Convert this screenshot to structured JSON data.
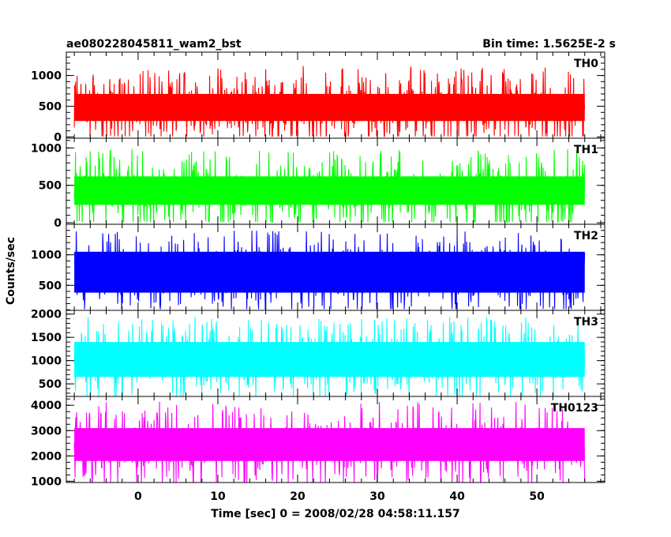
{
  "header": {
    "title": "ae080228045811_wam2_bst",
    "bin_time": "Bin time: 1.5625E-2 s"
  },
  "chart_data": {
    "type": "line",
    "title": "ae080228045811_wam2_bst",
    "subtitle": "Bin time: 1.5625E-2 s",
    "xlabel": "Time [sec] 0 = 2008/02/28 04:58:11.157",
    "ylabel": "Counts/sec",
    "xlim": [
      -9,
      58.5
    ],
    "x_range_data": [
      -8,
      56
    ],
    "x_ticks": [
      0,
      10,
      20,
      30,
      40,
      50
    ],
    "x_tick_labels": [
      "0",
      "10",
      "20",
      "30",
      "40",
      "50"
    ],
    "grid": false,
    "panels": [
      {
        "name": "TH0",
        "color": "#ff0000",
        "ylim": [
          -20,
          1380
        ],
        "yticks": [
          0,
          500,
          1000
        ],
        "ytick_labels": [
          "0",
          "500",
          "1000"
        ],
        "min": 10,
        "max": 1370,
        "band_low": 260,
        "band_high": 700
      },
      {
        "name": "TH1",
        "color": "#00ff00",
        "ylim": [
          -20,
          1130
        ],
        "yticks": [
          0,
          500,
          1000
        ],
        "ytick_labels": [
          "0",
          "500",
          "1000"
        ],
        "min": 10,
        "max": 1130,
        "band_low": 240,
        "band_high": 620
      },
      {
        "name": "TH2",
        "color": "#0000ff",
        "ylim": [
          90,
          1500
        ],
        "yticks": [
          500,
          1000
        ],
        "ytick_labels": [
          "500",
          "1000"
        ],
        "min": 110,
        "max": 1500,
        "band_low": 380,
        "band_high": 1050
      },
      {
        "name": "TH3",
        "color": "#00ffff",
        "ylim": [
          230,
          2080
        ],
        "yticks": [
          500,
          1000,
          1500,
          2000
        ],
        "ytick_labels": [
          "500",
          "1000",
          "1500",
          "2000"
        ],
        "min": 240,
        "max": 2080,
        "band_low": 650,
        "band_high": 1400
      },
      {
        "name": "TH0123",
        "color": "#ff00ff",
        "ylim": [
          950,
          4350
        ],
        "yticks": [
          1000,
          2000,
          3000,
          4000
        ],
        "ytick_labels": [
          "1000",
          "2000",
          "3000",
          "4000"
        ],
        "min": 950,
        "max": 4350,
        "band_low": 1800,
        "band_high": 3100
      }
    ]
  }
}
